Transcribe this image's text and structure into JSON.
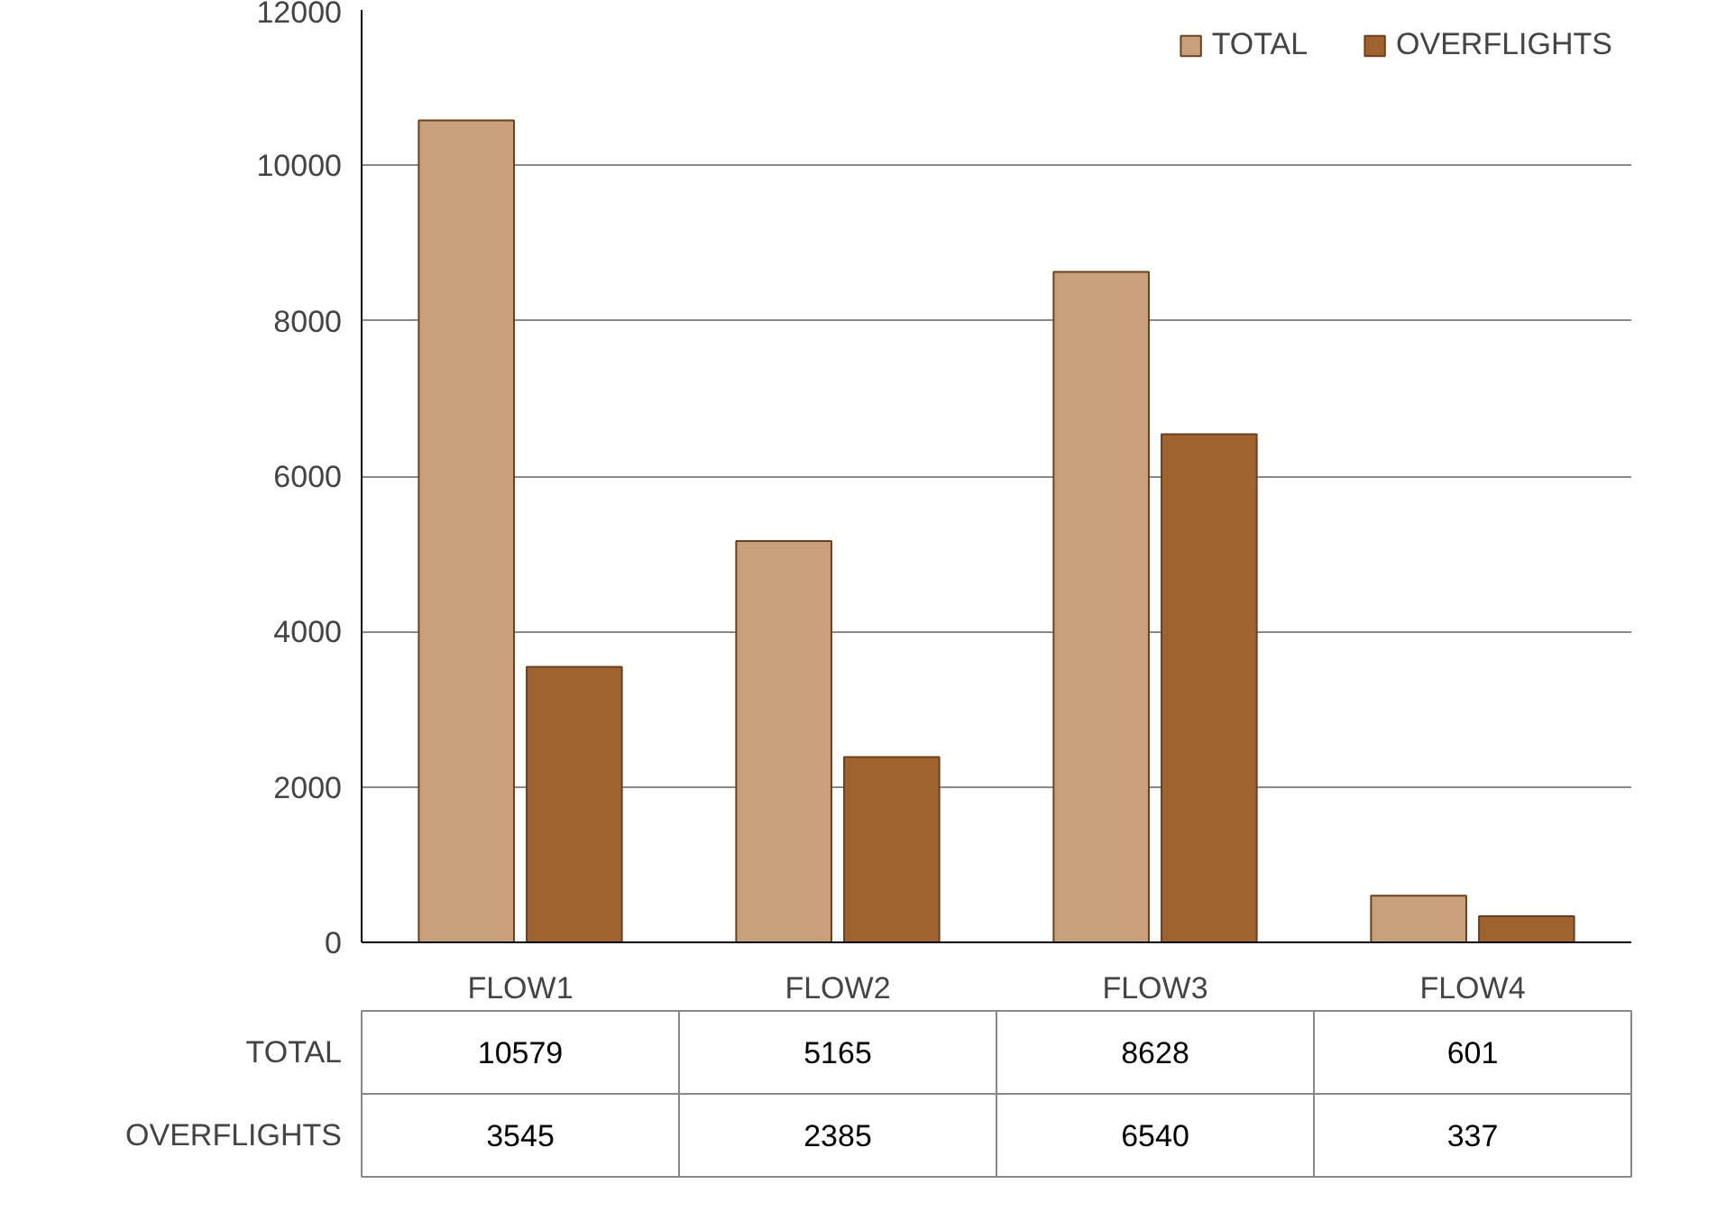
{
  "chart_data": {
    "type": "bar",
    "categories": [
      "FLOW1",
      "FLOW2",
      "FLOW3",
      "FLOW4"
    ],
    "series": [
      {
        "name": "TOTAL",
        "color": "#c8a07c",
        "values": [
          10579,
          5165,
          8628,
          601
        ]
      },
      {
        "name": "OVERFLIGHTS",
        "color": "#a0622e",
        "values": [
          3545,
          2385,
          6540,
          337
        ]
      }
    ],
    "ylim": [
      0,
      12000
    ],
    "yticks": [
      0,
      2000,
      4000,
      6000,
      8000,
      10000,
      12000
    ],
    "grid": "y",
    "legend": "top right",
    "data_labels": true
  }
}
